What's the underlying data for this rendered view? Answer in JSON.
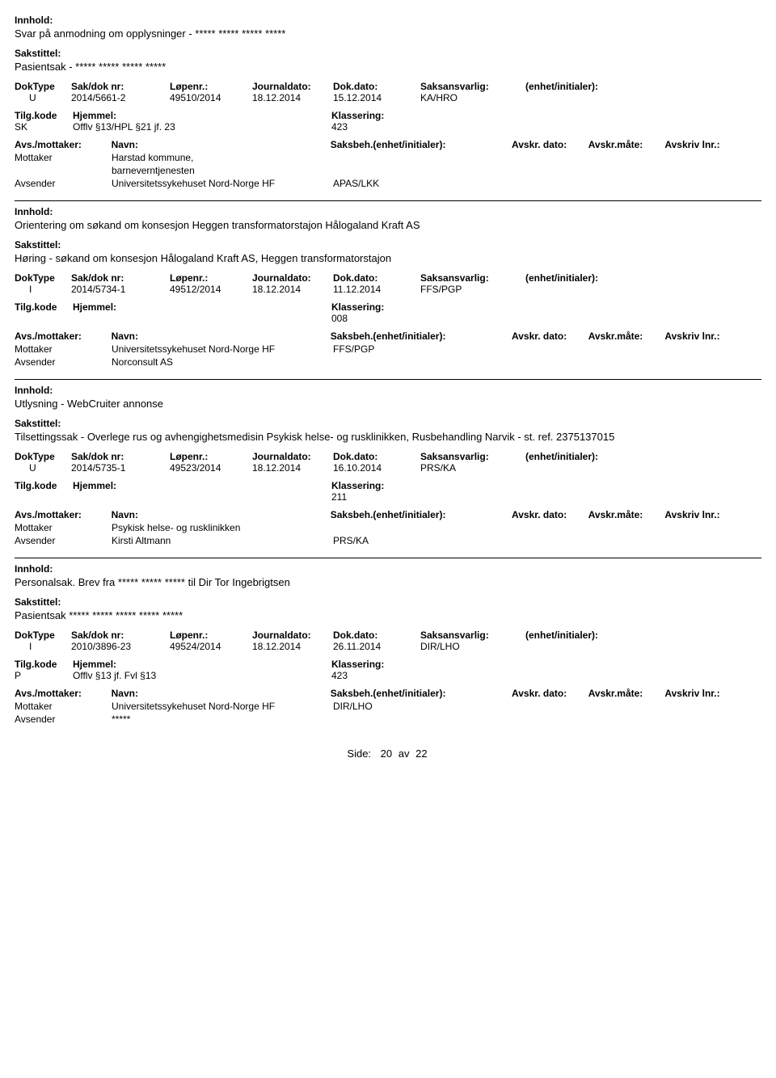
{
  "labels": {
    "innhold": "Innhold:",
    "sakstittel": "Sakstittel:",
    "doktype": "DokType",
    "saknr": "Sak/dok nr:",
    "lopenr": "Løpenr.:",
    "journaldato": "Journaldato:",
    "dokdato": "Dok.dato:",
    "saksansvarlig": "Saksansvarlig:",
    "enhet": "(enhet/initialer):",
    "tilgkode": "Tilg.kode",
    "hjemmel": "Hjemmel:",
    "klassering": "Klassering:",
    "avsmot": "Avs./mottaker:",
    "navn": "Navn:",
    "saksbeh": "Saksbeh.",
    "saksbeh_enhet": "(enhet/initialer):",
    "avskr_dato": "Avskr. dato:",
    "avskr_mate": "Avskr.måte:",
    "avskriv_lnr": "Avskriv lnr.:",
    "mottaker": "Mottaker",
    "avsender": "Avsender"
  },
  "records": [
    {
      "innhold": "Svar på anmodning om opplysninger - ***** ***** ***** *****",
      "sakstittel": "Pasientsak - ***** ***** ***** *****",
      "doktype": "U",
      "saknr": "2014/5661-2",
      "lopenr": "49510/2014",
      "jdato": "18.12.2014",
      "ddato": "15.12.2014",
      "saksansvarlig": "KA/HRO",
      "enhet": "",
      "tilg": "SK",
      "hjemmel": "Offlv §13/HPL §21 jf. 23",
      "klassering": "423",
      "parties": [
        {
          "role": "Mottaker",
          "name": "Harstad kommune,",
          "code": ""
        },
        {
          "role": "",
          "name": "barneverntjenesten",
          "code": ""
        },
        {
          "role": "Avsender",
          "name": "Universitetssykehuset Nord-Norge HF",
          "code": "APAS/LKK"
        }
      ]
    },
    {
      "innhold": "Orientering om søkand om konsesjon Heggen transformatorstajon Hålogaland Kraft AS",
      "sakstittel": "Høring - søkand om konsesjon Hålogaland Kraft AS,  Heggen transformatorstajon",
      "doktype": "I",
      "saknr": "2014/5734-1",
      "lopenr": "49512/2014",
      "jdato": "18.12.2014",
      "ddato": "11.12.2014",
      "saksansvarlig": "FFS/PGP",
      "enhet": "",
      "tilg": "",
      "hjemmel": "",
      "klassering": "008",
      "parties": [
        {
          "role": "Mottaker",
          "name": "Universitetssykehuset Nord-Norge HF",
          "code": "FFS/PGP"
        },
        {
          "role": "Avsender",
          "name": "Norconsult AS",
          "code": ""
        }
      ]
    },
    {
      "innhold": "Utlysning - WebCruiter annonse",
      "sakstittel": "Tilsettingssak - Overlege rus og avhengighetsmedisin Psykisk helse- og rusklinikken, Rusbehandling Narvik - st. ref. 2375137015",
      "doktype": "U",
      "saknr": "2014/5735-1",
      "lopenr": "49523/2014",
      "jdato": "18.12.2014",
      "ddato": "16.10.2014",
      "saksansvarlig": "PRS/KA",
      "enhet": "",
      "tilg": "",
      "hjemmel": "",
      "klassering": "211",
      "parties": [
        {
          "role": "Mottaker",
          "name": "Psykisk helse- og rusklinikken",
          "code": ""
        },
        {
          "role": "Avsender",
          "name": "Kirsti Altmann",
          "code": "PRS/KA"
        }
      ]
    },
    {
      "innhold": "Personalsak. Brev fra ***** ***** ***** til Dir Tor Ingebrigtsen",
      "sakstittel": "Pasientsak ***** ***** ***** ***** *****",
      "doktype": "I",
      "saknr": "2010/3896-23",
      "lopenr": "49524/2014",
      "jdato": "18.12.2014",
      "ddato": "26.11.2014",
      "saksansvarlig": "DIR/LHO",
      "enhet": "",
      "tilg": "P",
      "hjemmel": "Offlv §13 jf. Fvl §13",
      "klassering": "423",
      "parties": [
        {
          "role": "Mottaker",
          "name": "Universitetssykehuset Nord-Norge HF",
          "code": "DIR/LHO"
        },
        {
          "role": "Avsender",
          "name": "*****",
          "code": ""
        }
      ]
    }
  ],
  "footer": {
    "side_label": "Side:",
    "page": "20",
    "av": "av",
    "total": "22"
  }
}
